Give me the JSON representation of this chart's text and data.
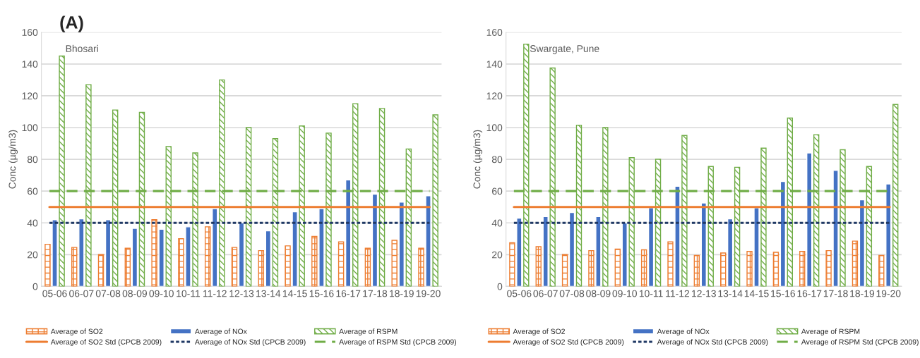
{
  "chart_data": [
    {
      "type": "bar",
      "title": "(A)",
      "subtitle": "Bhosari",
      "ylabel": "Conc (µg/m3)",
      "categories": [
        "05-06",
        "06-07",
        "07-08",
        "08-09",
        "09-10",
        "10-11",
        "11-12",
        "12-13",
        "13-14",
        "14-15",
        "15-16",
        "16-17",
        "17-18",
        "18-19",
        "19-20"
      ],
      "series": [
        {
          "name": "Average of SO2",
          "color": "#ed7d31",
          "values": [
            26.5,
            24.5,
            20,
            24,
            42,
            30,
            37.5,
            24.5,
            22.5,
            25.5,
            31.5,
            28,
            24,
            29,
            24
          ]
        },
        {
          "name": "Average of NOx",
          "color": "#4472c4",
          "values": [
            42,
            42.5,
            42,
            36.5,
            36,
            37.5,
            49,
            40,
            35,
            47,
            49,
            67,
            58,
            53,
            57
          ]
        },
        {
          "name": "Average of RSPM",
          "color": "#70ad47",
          "values": [
            145,
            127,
            111,
            109.5,
            88,
            84,
            130,
            100,
            93,
            101,
            96.5,
            115,
            112,
            86.5,
            108
          ]
        }
      ],
      "ref_lines": [
        {
          "axis": "y",
          "value": 50,
          "label": "Average of SO2 Std (CPCB 2009)",
          "color": "#ed7d31",
          "line_style": "solid"
        },
        {
          "axis": "y",
          "value": 40,
          "label": "Average of NOx Std (CPCB 2009)",
          "color": "#1f3864",
          "line_style": "dotted"
        },
        {
          "axis": "y",
          "value": 60,
          "label": "Average of RSPM Std (CPCB 2009)",
          "color": "#70ad47",
          "line_style": "dashed"
        }
      ],
      "ylim": [
        0,
        160
      ],
      "yticks": [
        0,
        20,
        40,
        60,
        80,
        100,
        120,
        140,
        160
      ],
      "grid": "y",
      "legend": "bottom"
    },
    {
      "type": "bar",
      "subtitle": "Swargate, Pune",
      "ylabel": "Conc (µg/m3)",
      "categories": [
        "05-06",
        "06-07",
        "07-08",
        "08-09",
        "09-10",
        "10-11",
        "11-12",
        "12-13",
        "13-14",
        "14-15",
        "15-16",
        "16-17",
        "17-18",
        "18-19",
        "19-20"
      ],
      "series": [
        {
          "name": "Average of SO2",
          "color": "#ed7d31",
          "values": [
            27.5,
            25,
            20,
            22.5,
            23.5,
            23,
            28,
            19.5,
            21,
            22,
            21.5,
            22,
            22.5,
            28.5,
            19.5
          ]
        },
        {
          "name": "Average of NOx",
          "color": "#4472c4",
          "values": [
            43,
            44,
            46.5,
            44,
            40,
            49.5,
            63,
            52.5,
            42.5,
            49.5,
            66,
            84,
            73,
            54.5,
            64.5
          ]
        },
        {
          "name": "Average of RSPM",
          "color": "#70ad47",
          "values": [
            152.5,
            137.5,
            101.5,
            100,
            81,
            80,
            95,
            75.5,
            75,
            87,
            106,
            95.5,
            86,
            75.5,
            114.5
          ]
        }
      ],
      "ref_lines": [
        {
          "axis": "y",
          "value": 50,
          "label": "Average of SO2 Std (CPCB 2009)",
          "color": "#ed7d31",
          "line_style": "solid"
        },
        {
          "axis": "y",
          "value": 40,
          "label": "Average of NOx Std (CPCB 2009)",
          "color": "#1f3864",
          "line_style": "dotted"
        },
        {
          "axis": "y",
          "value": 60,
          "label": "Average of RSPM Std (CPCB 2009)",
          "color": "#70ad47",
          "line_style": "dashed"
        }
      ],
      "ylim": [
        0,
        160
      ],
      "yticks": [
        0,
        20,
        40,
        60,
        80,
        100,
        120,
        140,
        160
      ],
      "grid": "y",
      "legend": "bottom"
    }
  ]
}
